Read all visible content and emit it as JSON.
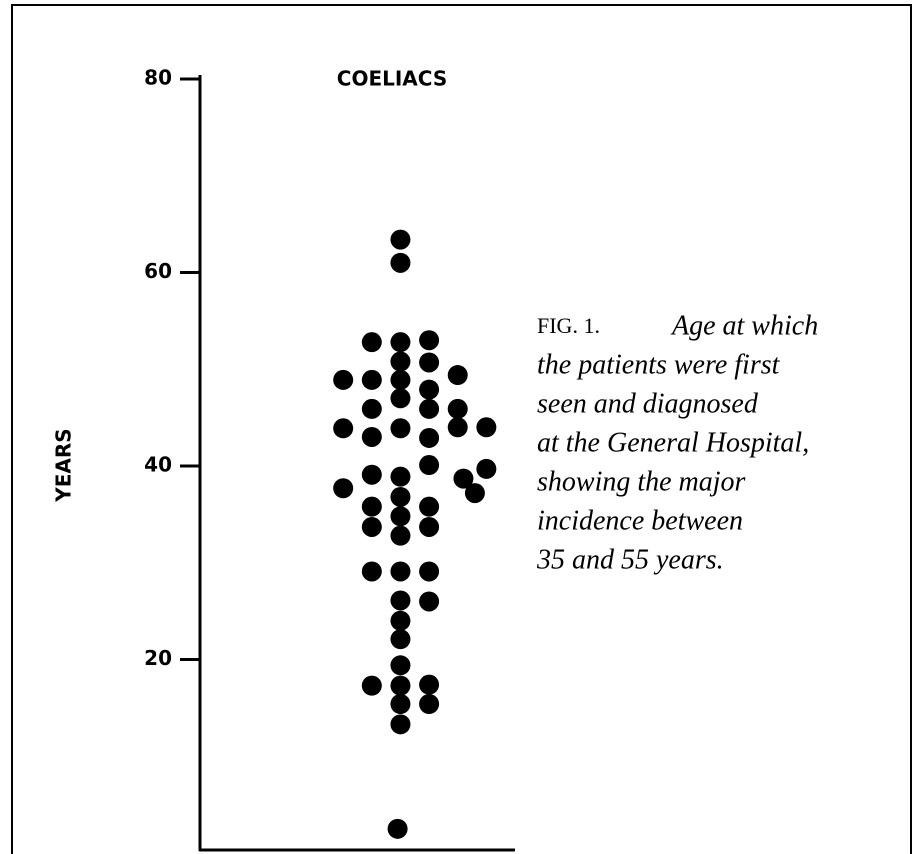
{
  "chart_data": {
    "type": "scatter",
    "title": "COELIACS",
    "y_label": "YEARS",
    "caption": {
      "figure": "FIG. 1.",
      "lines": [
        "Age at which",
        "the patients were first",
        "seen and diagnosed",
        "at the General Hospital,",
        "showing the major",
        "incidence between",
        "35 and 55 years."
      ]
    },
    "color": "#000000",
    "xlim": [
      -7,
      4
    ],
    "ylim": [
      0,
      80
    ],
    "yticks": [
      20,
      40,
      60,
      80
    ],
    "x": [
      0,
      0,
      -1,
      0,
      1,
      0,
      1,
      -2,
      -1,
      0,
      2,
      0,
      1,
      -1,
      1,
      2,
      -2,
      0,
      2,
      3,
      -1,
      1,
      1,
      2.2,
      3,
      -1,
      0,
      -2,
      2.6,
      0,
      -1,
      1,
      0,
      -1,
      1,
      0,
      -1,
      0,
      1,
      0,
      1,
      0,
      0,
      0,
      -1,
      0,
      1,
      0,
      1,
      0,
      -0.1
    ],
    "values": [
      63.4,
      61.0,
      52.8,
      52.8,
      53.0,
      50.8,
      50.7,
      48.9,
      48.9,
      48.9,
      49.4,
      47.0,
      47.9,
      45.9,
      45.9,
      45.9,
      43.9,
      43.9,
      44.0,
      44.0,
      43.0,
      42.9,
      40.1,
      38.7,
      39.7,
      39.1,
      38.9,
      37.7,
      37.2,
      36.8,
      35.8,
      35.8,
      34.8,
      33.7,
      33.7,
      32.8,
      29.1,
      29.1,
      29.1,
      26.1,
      26.0,
      24.0,
      22.1,
      19.4,
      17.3,
      17.3,
      17.4,
      15.4,
      15.4,
      13.3,
      2.5
    ]
  }
}
